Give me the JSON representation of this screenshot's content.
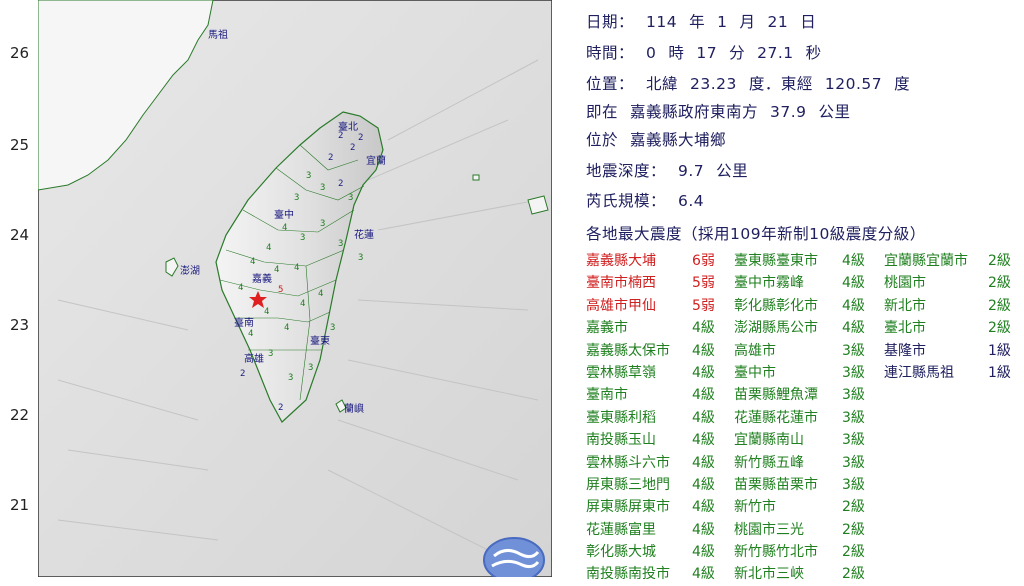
{
  "map": {
    "lat_labels": [
      "26",
      "25",
      "24",
      "23",
      "22",
      "21"
    ],
    "place_labels": {
      "matsu": "馬祖",
      "penghu": "澎湖",
      "taichung": "臺中",
      "chiayi": "嘉義",
      "tainan": "臺南",
      "kaohsiung": "高雄",
      "hualien": "花蓮",
      "taitung": "臺東",
      "yilan": "宜蘭",
      "taipei": "臺北",
      "lanyu": "蘭嶼"
    },
    "epicenter_color": "#e02020"
  },
  "info": {
    "date": [
      "日期：",
      "114",
      "年",
      "1",
      "月",
      "21",
      "日"
    ],
    "time": [
      "時間：",
      "0",
      "時",
      "17",
      "分",
      "27.1",
      "秒"
    ],
    "location": [
      "位置：",
      "北緯",
      "23.23",
      "度．東經",
      "120.57",
      "度"
    ],
    "near": [
      "即在",
      "嘉義縣政府東南方",
      "37.9",
      "公里"
    ],
    "at": [
      "位於",
      "嘉義縣大埔鄉"
    ],
    "depth": [
      "地震深度：",
      "9.7",
      "公里"
    ],
    "magnitude": [
      "芮氏規模：",
      "6.4"
    ],
    "intensity_heading": "各地最大震度（採用109年新制10級震度分級）"
  },
  "intensity": {
    "col1": [
      {
        "name": "嘉義縣大埔",
        "level": "6弱",
        "c": "red"
      },
      {
        "name": "臺南市楠西",
        "level": "5弱",
        "c": "red"
      },
      {
        "name": "高雄市甲仙",
        "level": "5弱",
        "c": "red"
      },
      {
        "name": "嘉義市",
        "level": "4級",
        "c": "green"
      },
      {
        "name": "嘉義縣太保市",
        "level": "4級",
        "c": "green"
      },
      {
        "name": "雲林縣草嶺",
        "level": "4級",
        "c": "green"
      },
      {
        "name": "臺南市",
        "level": "4級",
        "c": "green"
      },
      {
        "name": "臺東縣利稻",
        "level": "4級",
        "c": "green"
      },
      {
        "name": "南投縣玉山",
        "level": "4級",
        "c": "green"
      },
      {
        "name": "雲林縣斗六市",
        "level": "4級",
        "c": "green"
      },
      {
        "name": "屏東縣三地門",
        "level": "4級",
        "c": "green"
      },
      {
        "name": "屏東縣屏東市",
        "level": "4級",
        "c": "green"
      },
      {
        "name": "花蓮縣富里",
        "level": "4級",
        "c": "green"
      },
      {
        "name": "彰化縣大城",
        "level": "4級",
        "c": "green"
      },
      {
        "name": "南投縣南投市",
        "level": "4級",
        "c": "green"
      }
    ],
    "col2": [
      {
        "name": "臺東縣臺東市",
        "level": "4級",
        "c": "green"
      },
      {
        "name": "臺中市霧峰",
        "level": "4級",
        "c": "green"
      },
      {
        "name": "彰化縣彰化市",
        "level": "4級",
        "c": "green"
      },
      {
        "name": "澎湖縣馬公市",
        "level": "4級",
        "c": "green"
      },
      {
        "name": "高雄市",
        "level": "3級",
        "c": "green"
      },
      {
        "name": "臺中市",
        "level": "3級",
        "c": "green"
      },
      {
        "name": "苗栗縣鯉魚潭",
        "level": "3級",
        "c": "green"
      },
      {
        "name": "花蓮縣花蓮市",
        "level": "3級",
        "c": "green"
      },
      {
        "name": "宜蘭縣南山",
        "level": "3級",
        "c": "green"
      },
      {
        "name": "新竹縣五峰",
        "level": "3級",
        "c": "green"
      },
      {
        "name": "苗栗縣苗栗市",
        "level": "3級",
        "c": "green"
      },
      {
        "name": "新竹市",
        "level": "2級",
        "c": "green"
      },
      {
        "name": "桃園市三光",
        "level": "2級",
        "c": "green"
      },
      {
        "name": "新竹縣竹北市",
        "level": "2級",
        "c": "green"
      },
      {
        "name": "新北市三峽",
        "level": "2級",
        "c": "green"
      }
    ],
    "col3": [
      {
        "name": "宜蘭縣宜蘭市",
        "level": "2級",
        "c": "green"
      },
      {
        "name": "桃園市",
        "level": "2級",
        "c": "green"
      },
      {
        "name": "新北市",
        "level": "2級",
        "c": "green"
      },
      {
        "name": "臺北市",
        "level": "2級",
        "c": "green"
      },
      {
        "name": "基隆市",
        "level": "1級",
        "c": "navy"
      },
      {
        "name": "連江縣馬祖",
        "level": "1級",
        "c": "navy"
      }
    ]
  }
}
